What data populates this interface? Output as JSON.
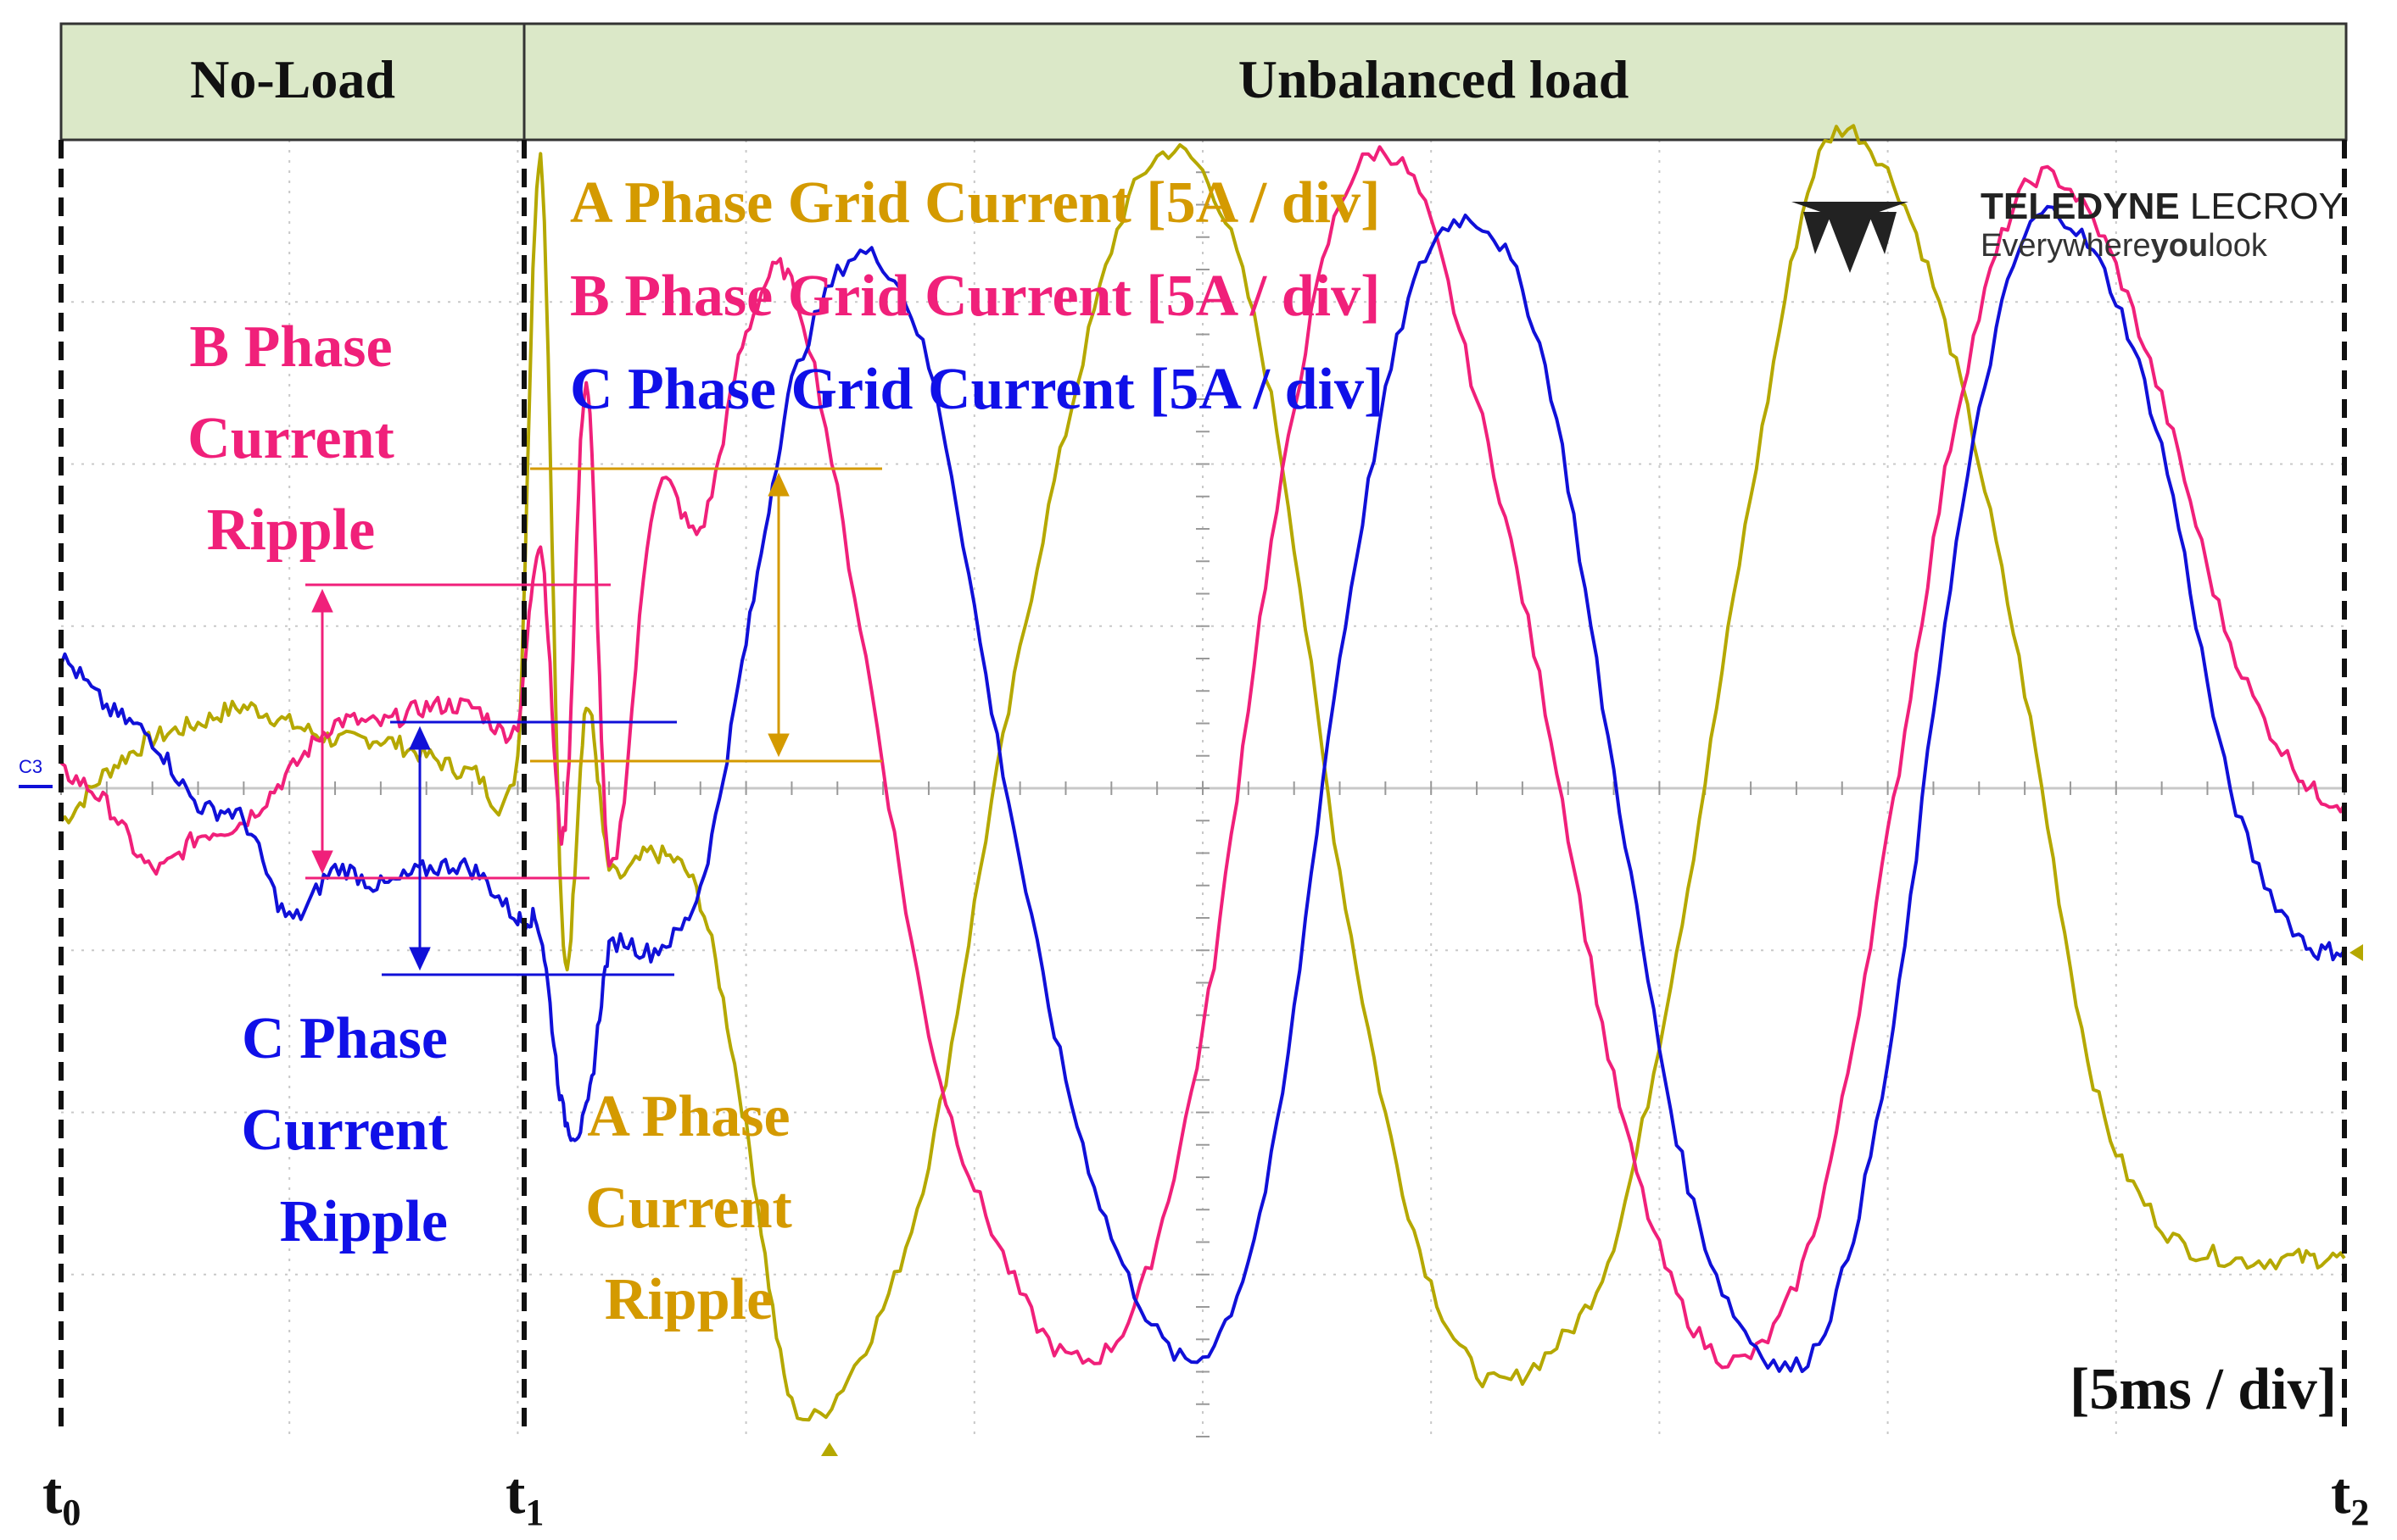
{
  "header": {
    "left_label": "No-Load",
    "right_label": "Unbalanced load"
  },
  "legend": {
    "a": "A Phase Grid Current [5A / div]",
    "b": "B Phase Grid Current [5A / div]",
    "c": "C Phase Grid Current [5A / div]"
  },
  "annotations": {
    "b_ripple": [
      "B Phase",
      "Current",
      "Ripple"
    ],
    "c_ripple": [
      "C Phase",
      "Current",
      "Ripple"
    ],
    "a_ripple": [
      "A Phase",
      "Current",
      "Ripple"
    ]
  },
  "timebase_label": "[5ms / div]",
  "time_markers": [
    {
      "base": "t",
      "sub": "0"
    },
    {
      "base": "t",
      "sub": "1"
    },
    {
      "base": "t",
      "sub": "2"
    }
  ],
  "channel_marker": "C3",
  "logo": {
    "brand_bold": "TELEDYNE",
    "brand_light": " LECROY",
    "tagline_a": "Everywhere",
    "tagline_b": "you",
    "tagline_c": "look"
  },
  "colors": {
    "phase_a": "#b5a800",
    "phase_b": "#f0207a",
    "phase_c": "#1010d8",
    "a_text": "#d49a00",
    "b_text": "#f0207a",
    "c_text": "#1010e8",
    "header_bg": "#dbe8c8",
    "grid": "#c8c8c8"
  },
  "chart_data": {
    "type": "line",
    "xlabel": "",
    "ylabel": "",
    "x_unit_per_div": "5ms",
    "y_unit_per_div": "5A",
    "xlim_div": [
      0,
      10
    ],
    "ylim_div": [
      -4,
      4
    ],
    "grid": true,
    "events": [
      {
        "label": "t0",
        "x_div": 0
      },
      {
        "label": "t1",
        "x_div": 2
      },
      {
        "label": "t2",
        "x_div": 10
      }
    ],
    "series": [
      {
        "name": "A Phase Grid Current [5A / div]",
        "x": [
          0,
          0.2,
          0.4,
          0.6,
          0.8,
          1.0,
          1.2,
          1.4,
          1.6,
          1.8,
          2.0,
          2.1,
          2.2,
          2.3,
          2.4,
          2.6,
          2.8,
          3.0,
          3.2,
          3.5,
          3.8,
          4.1,
          4.4,
          4.7,
          5.0,
          5.3,
          5.6,
          5.9,
          6.2,
          6.5,
          6.8,
          7.1,
          7.4,
          7.7,
          8.0,
          8.3,
          8.6,
          8.9,
          9.2,
          9.5,
          9.8,
          10.0
        ],
        "y": [
          -0.2,
          0.1,
          0.3,
          0.4,
          0.5,
          0.4,
          0.3,
          0.3,
          0.2,
          0.1,
          0.2,
          3.9,
          -1.0,
          0.5,
          -0.5,
          -0.4,
          -0.7,
          -2.1,
          -3.8,
          -3.5,
          -2.3,
          0.1,
          2.2,
          3.7,
          3.8,
          2.4,
          -0.5,
          -2.6,
          -3.6,
          -3.5,
          -2.8,
          -0.8,
          1.8,
          3.9,
          3.8,
          2.6,
          0.6,
          -1.8,
          -2.7,
          -2.9,
          -2.9,
          -2.9
        ]
      },
      {
        "name": "B Phase Grid Current [5A / div]",
        "x": [
          0,
          0.2,
          0.4,
          0.6,
          0.8,
          1.0,
          1.2,
          1.4,
          1.6,
          1.8,
          2.0,
          2.1,
          2.2,
          2.3,
          2.4,
          2.6,
          2.8,
          3.0,
          3.2,
          3.5,
          3.8,
          4.1,
          4.4,
          4.7,
          5.0,
          5.3,
          5.6,
          5.9,
          6.2,
          6.5,
          6.8,
          7.1,
          7.4,
          7.7,
          8.0,
          8.3,
          8.6,
          8.9,
          9.2,
          9.5,
          9.8,
          10.0
        ],
        "y": [
          0.1,
          -0.1,
          -0.5,
          -0.3,
          -0.2,
          0.1,
          0.4,
          0.4,
          0.5,
          0.5,
          0.4,
          1.5,
          -0.3,
          2.5,
          -0.5,
          1.8,
          1.6,
          2.8,
          3.1,
          1.0,
          -1.5,
          -2.8,
          -3.5,
          -3.2,
          -1.5,
          1.5,
          3.6,
          3.8,
          2.4,
          0.5,
          -1.8,
          -3.2,
          -3.5,
          -2.6,
          -0.3,
          2.3,
          3.7,
          3.5,
          2.4,
          0.9,
          0.1,
          -0.1
        ]
      },
      {
        "name": "C Phase Grid Current [5A / div]",
        "x": [
          0,
          0.2,
          0.4,
          0.6,
          0.8,
          1.0,
          1.2,
          1.4,
          1.6,
          1.8,
          2.0,
          2.1,
          2.2,
          2.3,
          2.4,
          2.6,
          2.8,
          3.0,
          3.2,
          3.5,
          3.8,
          4.1,
          4.4,
          4.7,
          5.0,
          5.3,
          5.6,
          5.9,
          6.2,
          6.5,
          6.8,
          7.1,
          7.4,
          7.7,
          8.0,
          8.3,
          8.6,
          8.9,
          9.2,
          9.5,
          9.8,
          10.0
        ],
        "y": [
          0.8,
          0.5,
          0.3,
          -0.1,
          -0.2,
          -0.8,
          -0.5,
          -0.6,
          -0.5,
          -0.5,
          -0.8,
          -0.9,
          -2.0,
          -2.0,
          -1.0,
          -1.0,
          -0.6,
          0.9,
          2.5,
          3.3,
          2.6,
          0.3,
          -1.8,
          -3.1,
          -3.5,
          -2.3,
          0.8,
          3.0,
          3.5,
          2.6,
          0.1,
          -2.3,
          -3.4,
          -3.4,
          -1.7,
          1.5,
          3.4,
          3.3,
          2.1,
          0.0,
          -0.9,
          -1.0
        ]
      }
    ]
  }
}
